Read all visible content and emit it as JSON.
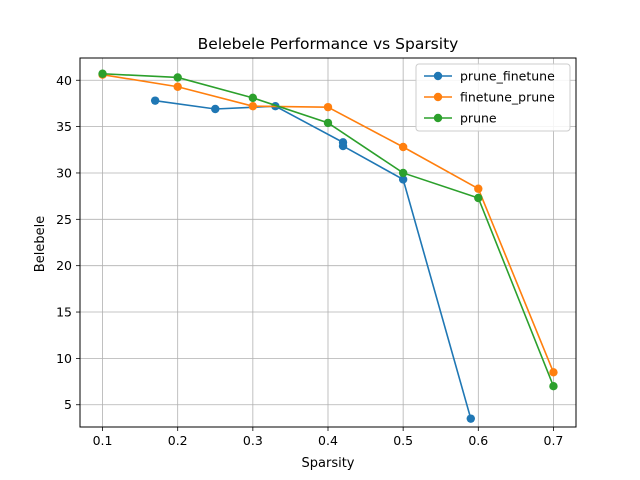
{
  "chart_data": {
    "type": "line",
    "title": "Belebele Performance vs Sparsity",
    "xlabel": "Sparsity",
    "ylabel": "Belebele",
    "xlim": [
      0.07,
      0.73
    ],
    "ylim": [
      2.6,
      42.4
    ],
    "xticks": [
      0.1,
      0.2,
      0.3,
      0.4,
      0.5,
      0.6,
      0.7
    ],
    "xtick_labels": [
      "0.1",
      "0.2",
      "0.3",
      "0.4",
      "0.5",
      "0.6",
      "0.7"
    ],
    "yticks": [
      5,
      10,
      15,
      20,
      25,
      30,
      35,
      40
    ],
    "ytick_labels": [
      "5",
      "10",
      "15",
      "20",
      "25",
      "30",
      "35",
      "40"
    ],
    "grid": true,
    "legend_position": "top-right",
    "series": [
      {
        "name": "prune_finetune",
        "color": "#1f77b4",
        "x": [
          0.17,
          0.25,
          0.33,
          0.42,
          0.42,
          0.5,
          0.59
        ],
        "y": [
          37.8,
          36.9,
          37.2,
          33.3,
          32.9,
          29.3,
          3.5
        ]
      },
      {
        "name": "finetune_prune",
        "color": "#ff7f0e",
        "x": [
          0.1,
          0.2,
          0.3,
          0.4,
          0.5,
          0.6,
          0.7
        ],
        "y": [
          40.6,
          39.3,
          37.2,
          37.1,
          32.8,
          28.3,
          8.5
        ]
      },
      {
        "name": "prune",
        "color": "#2ca02c",
        "x": [
          0.1,
          0.2,
          0.3,
          0.4,
          0.5,
          0.6,
          0.7
        ],
        "y": [
          40.7,
          40.3,
          38.1,
          35.4,
          30.0,
          27.3,
          7.0
        ]
      }
    ]
  }
}
